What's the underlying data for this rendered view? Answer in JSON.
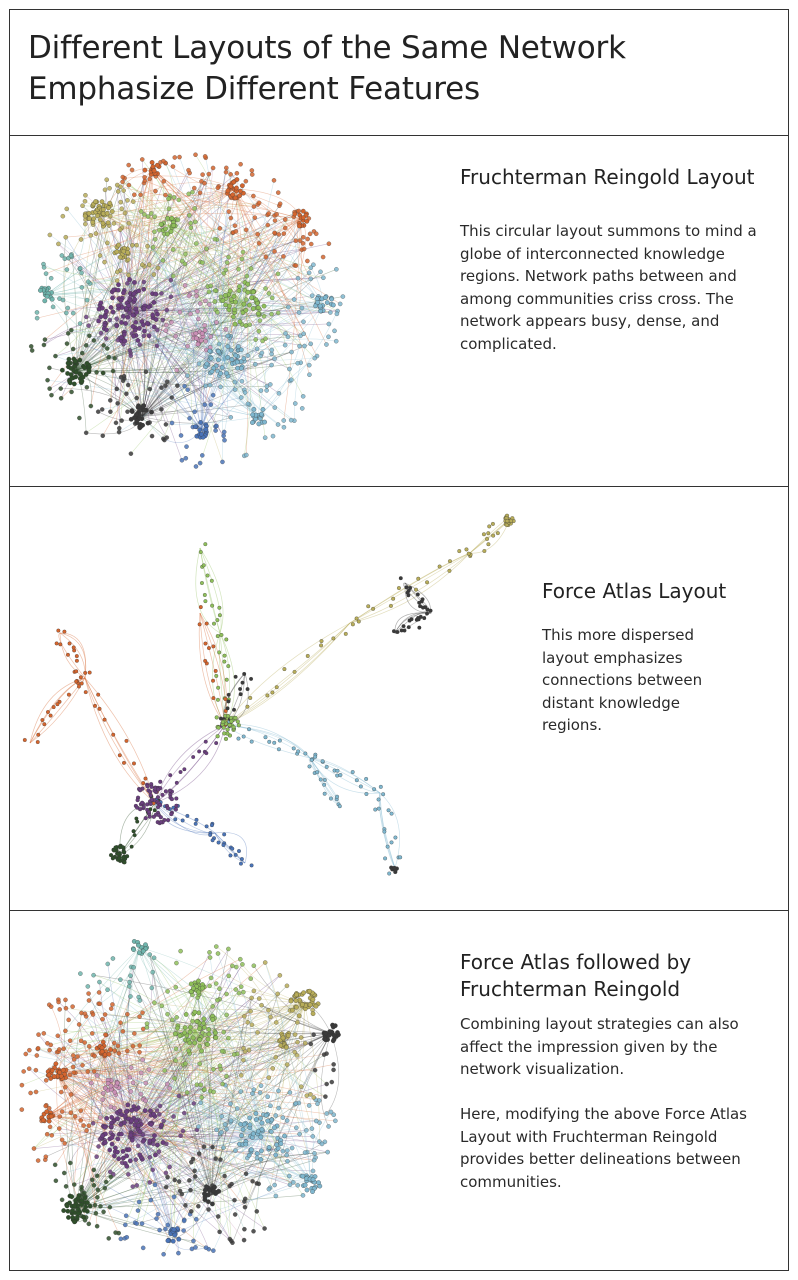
{
  "title": {
    "line1": "Different Layouts of the Same Network",
    "line2": "Emphasize Different Features"
  },
  "panels": [
    {
      "heading": "Fruchterman Reingold Layout",
      "body": "This circular layout summons to mind a globe of interconnected knowledge regions. Network paths between and among communities criss cross. The network appears busy, dense, and complicated."
    },
    {
      "heading": "Force Atlas Layout",
      "body": "This more dispersed layout emphasizes connections between distant knowledge regions."
    },
    {
      "heading": "Force Atlas followed by Fruchterman Reingold",
      "body": "Combining layout strategies can also affect the impression given by the network visualization.",
      "body2": "Here, modifying the above Force Atlas Layout with Fruchterman Reingold provides better delineations between communities."
    }
  ],
  "colors": {
    "purple": "#6b3f7f",
    "dark_green": "#2f4f2a",
    "charcoal": "#3a3a3a",
    "orange": "#d4652e",
    "light_green": "#8fbf5a",
    "olive": "#b8ad5a",
    "light_blue": "#7fb7cf",
    "blue": "#4a74b8",
    "teal": "#6fb5ad",
    "pink": "#c98fb5"
  }
}
